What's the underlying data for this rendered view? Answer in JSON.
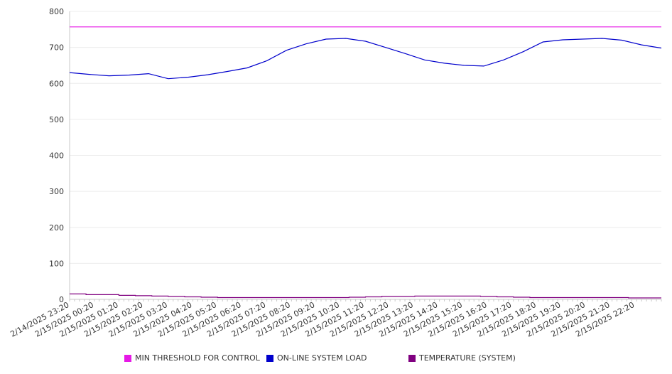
{
  "chart_data": {
    "type": "line",
    "title": "",
    "xlabel": "",
    "ylabel": "",
    "ylim": [
      0,
      800
    ],
    "y_ticks": [
      "0",
      "100",
      "200",
      "300",
      "400",
      "500",
      "600",
      "700",
      "800"
    ],
    "x_tick_labels": [
      "2/14/2025 23:20",
      "2/15/2025 00:20",
      "2/15/2025 01:20",
      "2/15/2025 02:20",
      "2/15/2025 03:20",
      "2/15/2025 04:20",
      "2/15/2025 05:20",
      "2/15/2025 06:20",
      "2/15/2025 07:20",
      "2/15/2025 08:20",
      "2/15/2025 09:20",
      "2/15/2025 10:20",
      "2/15/2025 11:20",
      "2/15/2025 12:20",
      "2/15/2025 13:20",
      "2/15/2025 14:20",
      "2/15/2025 15:20",
      "2/15/2025 16:20",
      "2/15/2025 17:20",
      "2/15/2025 18:20",
      "2/15/2025 19:20",
      "2/15/2025 20:20",
      "2/15/2025 21:20",
      "2/15/2025 22:20"
    ],
    "grid": true,
    "legend_position": "bottom",
    "series": [
      {
        "name": "MIN THRESHOLD FOR CONTROL",
        "color": "#e619e6",
        "step": false,
        "values": [
          757,
          757,
          757,
          757,
          757,
          757,
          757,
          757,
          757,
          757,
          757,
          757,
          757,
          757,
          757,
          757,
          757,
          757,
          757,
          757,
          757,
          757,
          757,
          757,
          757
        ]
      },
      {
        "name": "ON-LINE SYSTEM LOAD",
        "color": "#0000cc",
        "step": false,
        "values": [
          630,
          625,
          621,
          623,
          627,
          613,
          617,
          624,
          633,
          643,
          663,
          692,
          710,
          723,
          725,
          717,
          700,
          683,
          665,
          656,
          650,
          648,
          665,
          688,
          715,
          721,
          723,
          725,
          720,
          707,
          698
        ]
      },
      {
        "name": "TEMPERATURE (SYSTEM)",
        "color": "#800080",
        "step": true,
        "values": [
          15,
          13,
          13,
          11,
          10,
          9,
          8,
          7,
          6,
          5,
          5,
          5,
          5,
          5,
          5,
          5,
          5,
          6,
          7,
          8,
          8,
          9,
          9,
          9,
          9,
          8,
          7,
          6,
          5,
          5,
          5,
          5,
          5,
          5,
          4,
          4
        ]
      }
    ]
  }
}
